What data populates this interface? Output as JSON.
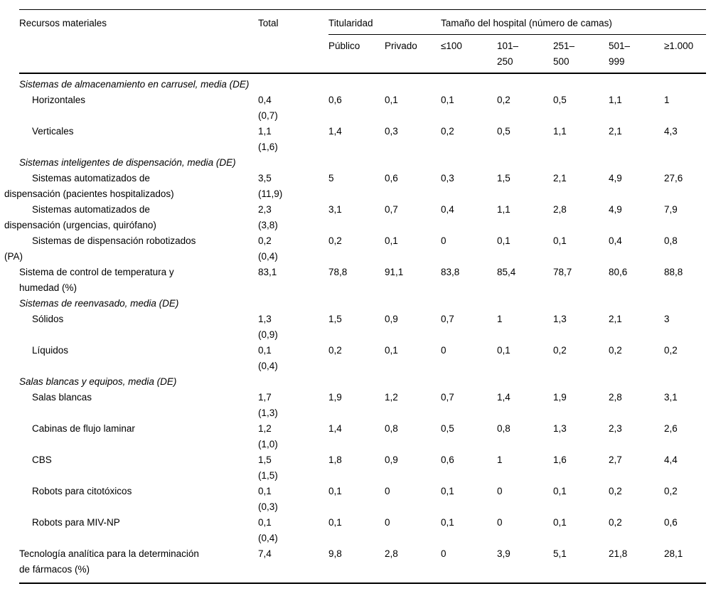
{
  "page": {
    "background_color": "#ffffff",
    "text_color": "#000000",
    "rule_color": "#000000"
  },
  "table": {
    "header": {
      "col1": "Recursos materiales",
      "total": "Total",
      "groups": [
        {
          "label": "Titularidad",
          "cols": [
            "Público",
            "Privado"
          ]
        },
        {
          "label": "Tamaño del hospital (número de camas)",
          "cols": [
            "≤100",
            "101–\n250",
            "251–\n500",
            "501–\n999",
            "≥1.000"
          ]
        }
      ]
    },
    "rows": [
      {
        "type": "section",
        "label": "Sistemas de almacenamiento en carrusel, media (DE)"
      },
      {
        "type": "subitem",
        "label": "Horizontales",
        "total": "0,4\n(0,7)",
        "values": [
          "0,6",
          "0,1",
          "0,1",
          "0,2",
          "0,5",
          "1,1",
          "1"
        ]
      },
      {
        "type": "subitem",
        "label": "Verticales",
        "total": "1,1\n(1,6)",
        "values": [
          "1,4",
          "0,3",
          "0,2",
          "0,5",
          "1,1",
          "2,1",
          "4,3"
        ]
      },
      {
        "type": "section",
        "label": "Sistemas inteligentes de dispensación, media (DE)"
      },
      {
        "type": "subitem",
        "label": "Sistemas automatizados de\ndispensación (pacientes hospitalizados)",
        "total": "3,5\n(11,9)",
        "values": [
          "5",
          "0,6",
          "0,3",
          "1,5",
          "2,1",
          "4,9",
          "27,6"
        ]
      },
      {
        "type": "subitem",
        "label": "Sistemas automatizados de\ndispensación (urgencias, quirófano)",
        "total": "2,3\n(3,8)",
        "values": [
          "3,1",
          "0,7",
          "0,4",
          "1,1",
          "2,8",
          "4,9",
          "7,9"
        ]
      },
      {
        "type": "subitem",
        "label": "Sistemas de dispensación robotizados\n(PA)",
        "total": "0,2\n(0,4)",
        "values": [
          "0,2",
          "0,1",
          "0",
          "0,1",
          "0,1",
          "0,4",
          "0,8"
        ]
      },
      {
        "type": "item",
        "label": "Sistema de control de temperatura y\nhumedad (%)",
        "total": "83,1",
        "values": [
          "78,8",
          "91,1",
          "83,8",
          "85,4",
          "78,7",
          "80,6",
          "88,8"
        ]
      },
      {
        "type": "section",
        "label": "Sistemas de reenvasado, media (DE)"
      },
      {
        "type": "subitem",
        "label": "Sólidos",
        "total": "1,3\n(0,9)",
        "values": [
          "1,5",
          "0,9",
          "0,7",
          "1",
          "1,3",
          "2,1",
          "3"
        ]
      },
      {
        "type": "subitem",
        "label": "Líquidos",
        "total": "0,1\n(0,4)",
        "values": [
          "0,2",
          "0,1",
          "0",
          "0,1",
          "0,2",
          "0,2",
          "0,2"
        ]
      },
      {
        "type": "section",
        "label": "Salas blancas y equipos, media (DE)"
      },
      {
        "type": "subitem",
        "label": "Salas blancas",
        "total": "1,7\n(1,3)",
        "values": [
          "1,9",
          "1,2",
          "0,7",
          "1,4",
          "1,9",
          "2,8",
          "3,1"
        ]
      },
      {
        "type": "subitem",
        "label": "Cabinas de flujo laminar",
        "total": "1,2\n(1,0)",
        "values": [
          "1,4",
          "0,8",
          "0,5",
          "0,8",
          "1,3",
          "2,3",
          "2,6"
        ]
      },
      {
        "type": "subitem",
        "label": "CBS",
        "total": "1,5\n(1,5)",
        "values": [
          "1,8",
          "0,9",
          "0,6",
          "1",
          "1,6",
          "2,7",
          "4,4"
        ]
      },
      {
        "type": "subitem",
        "label": "Robots para citotóxicos",
        "total": "0,1\n(0,3)",
        "values": [
          "0,1",
          "0",
          "0,1",
          "0",
          "0,1",
          "0,2",
          "0,2"
        ]
      },
      {
        "type": "subitem",
        "label": "Robots para MIV-NP",
        "total": "0,1\n(0,4)",
        "values": [
          "0,1",
          "0",
          "0,1",
          "0",
          "0,1",
          "0,2",
          "0,6"
        ]
      },
      {
        "type": "item",
        "label": "Tecnología analítica para la determinación\nde fármacos (%)",
        "total": "7,4",
        "values": [
          "9,8",
          "2,8",
          "0",
          "3,9",
          "5,1",
          "21,8",
          "28,1"
        ]
      }
    ]
  }
}
